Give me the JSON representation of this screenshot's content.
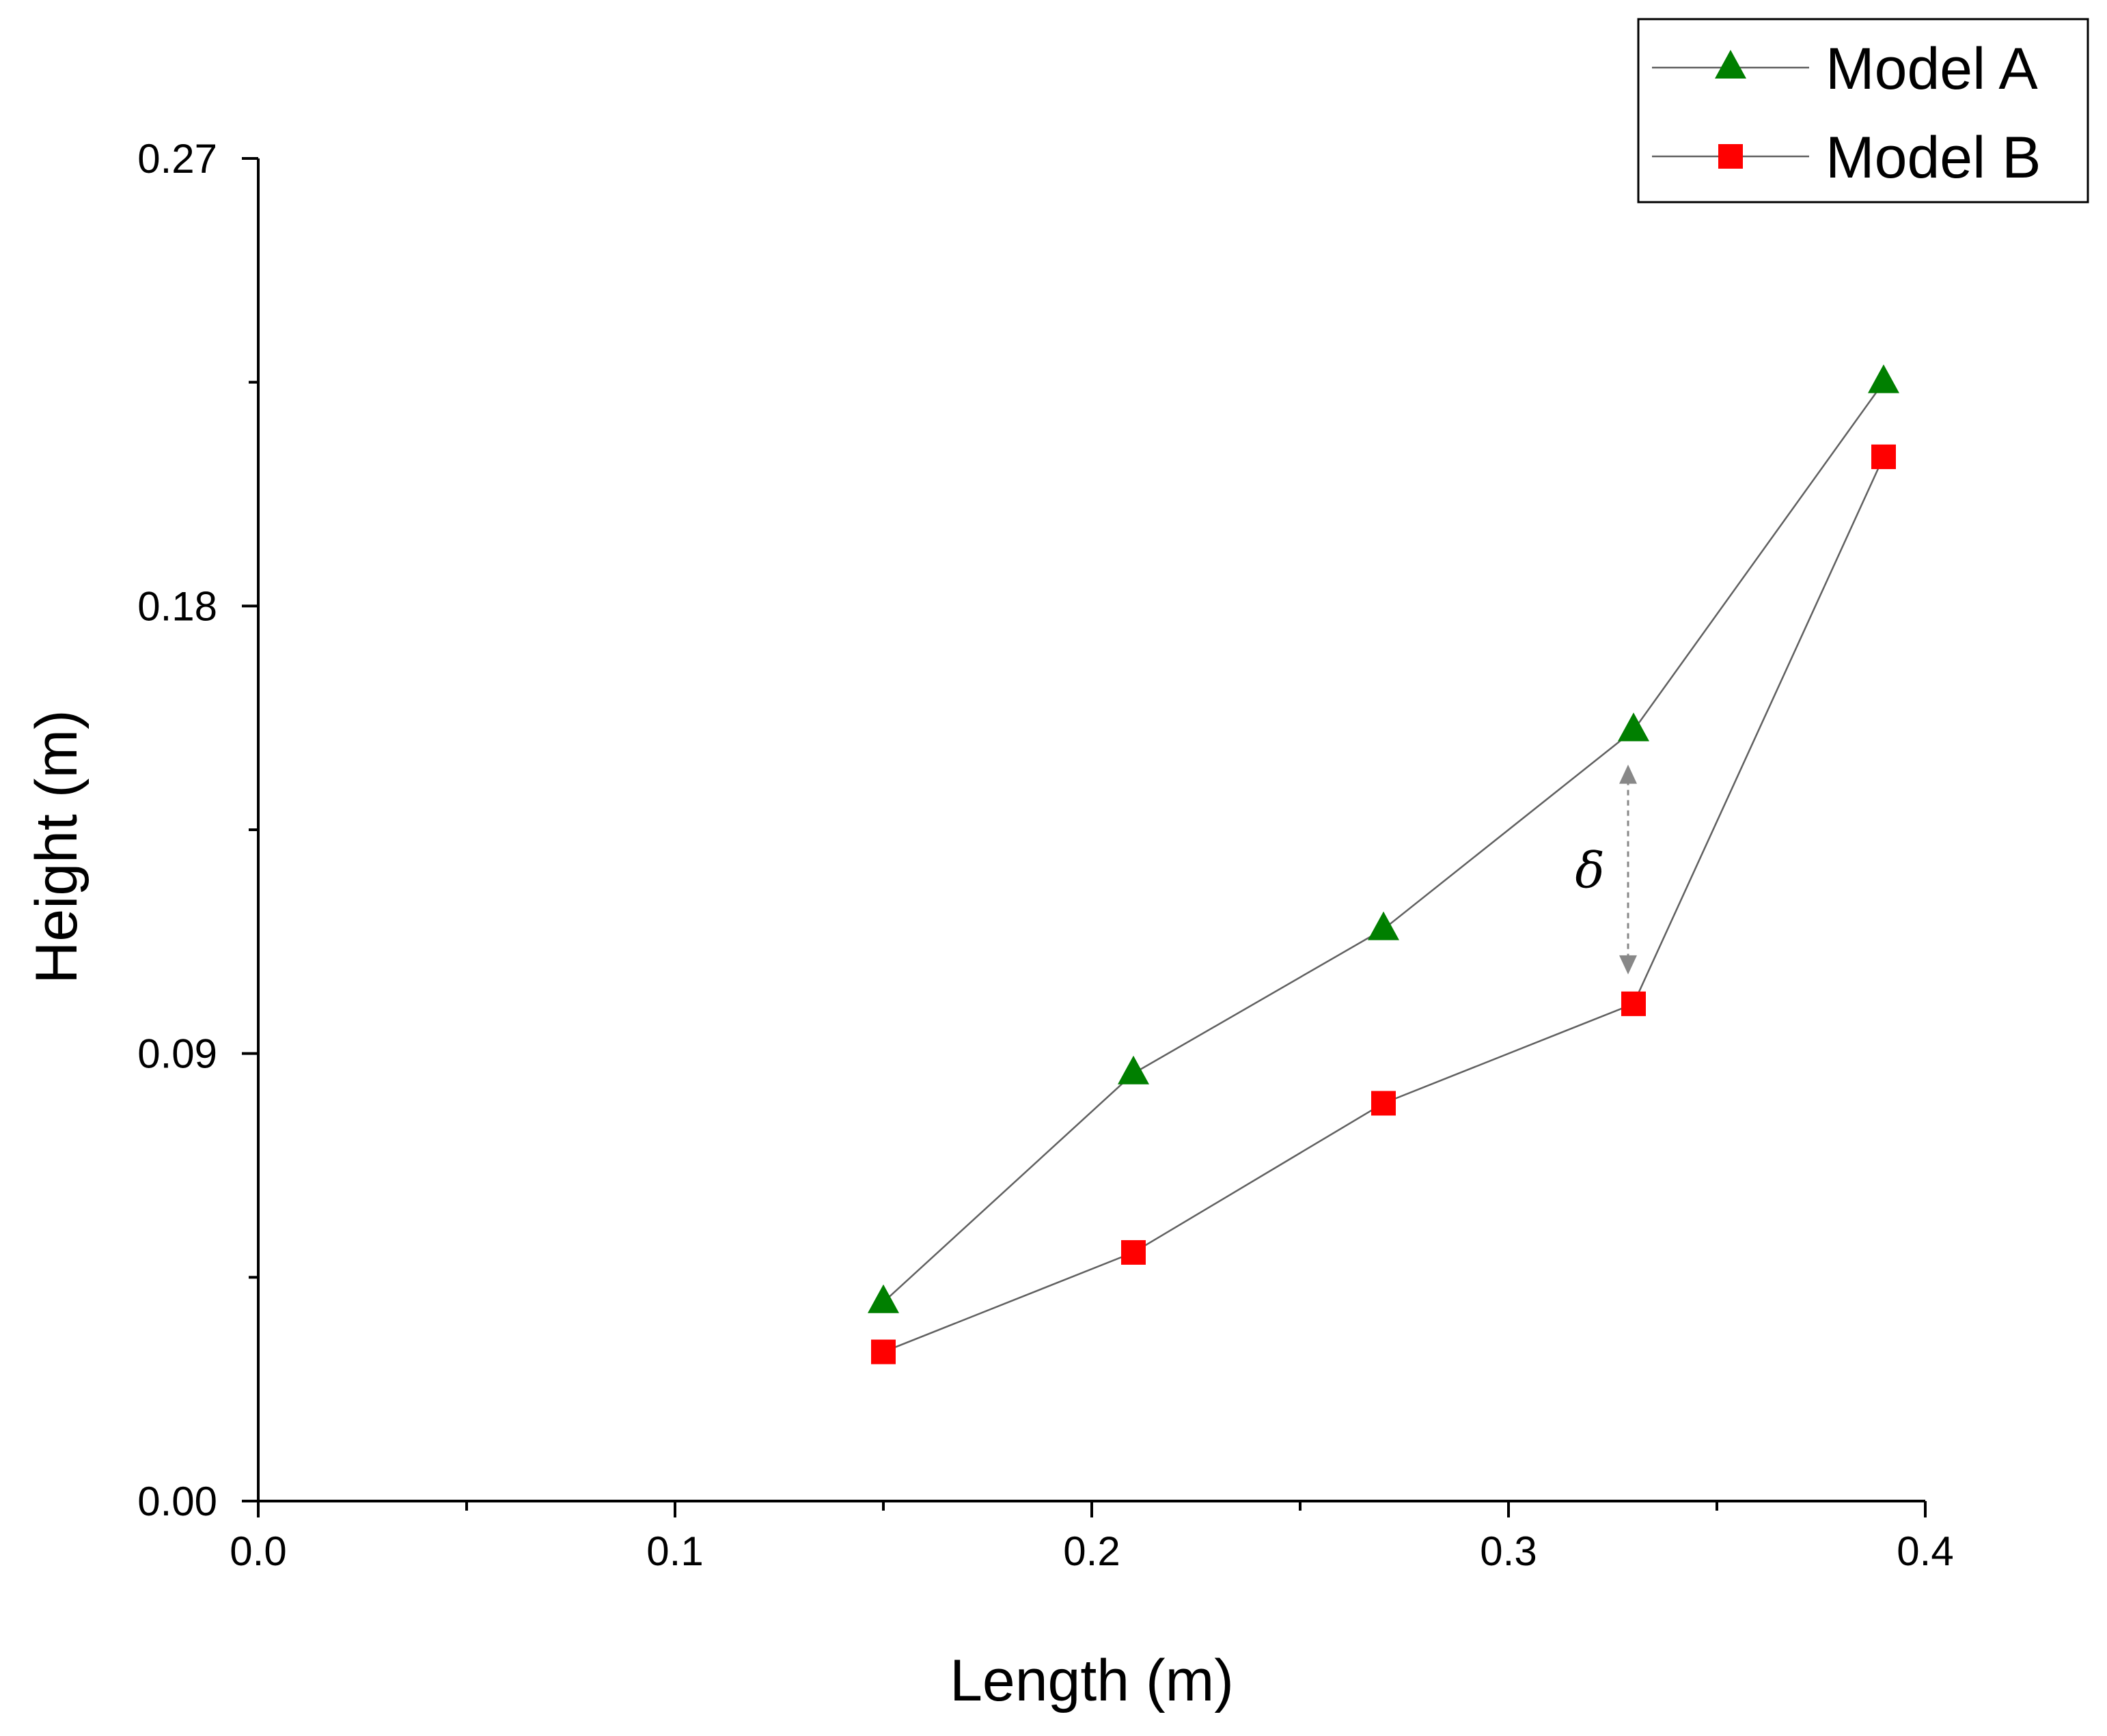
{
  "chart_data": {
    "type": "line",
    "title": "",
    "xlabel": "Length (m)",
    "ylabel": "Height (m)",
    "xlim": [
      0.0,
      0.4
    ],
    "ylim": [
      0.0,
      0.27
    ],
    "x_ticks": [
      "0.0",
      "0.1",
      "0.2",
      "0.3",
      "0.4"
    ],
    "y_ticks": [
      "0.00",
      "0.09",
      "0.18",
      "0.27"
    ],
    "grid": false,
    "legend_position": "top-right",
    "series": [
      {
        "name": "Model A",
        "marker": "triangle",
        "color": "#007f00",
        "x": [
          0.15,
          0.21,
          0.27,
          0.33,
          0.39
        ],
        "y": [
          0.04,
          0.086,
          0.115,
          0.155,
          0.225
        ]
      },
      {
        "name": "Model B",
        "marker": "square",
        "color": "#ff0000",
        "x": [
          0.15,
          0.21,
          0.27,
          0.33,
          0.39
        ],
        "y": [
          0.03,
          0.05,
          0.08,
          0.1,
          0.21
        ]
      }
    ],
    "annotations": [
      {
        "text": "δ",
        "x": 0.33,
        "y_from": 0.147,
        "y_to": 0.107,
        "style": "dashed double arrow"
      }
    ]
  },
  "colors": {
    "line": "#606060",
    "axis": "#000000",
    "annotation_arrow": "#888888"
  }
}
